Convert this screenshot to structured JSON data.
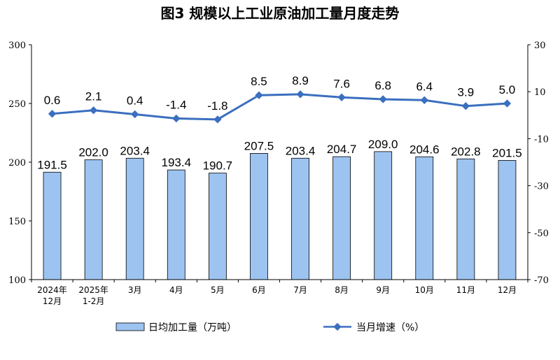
{
  "chart_data": {
    "type": "bar+line",
    "title": "图3  规模以上工业原油加工量月度走势",
    "categories": [
      [
        "2024年",
        "12月"
      ],
      [
        "2025年",
        "1-2月"
      ],
      [
        "3月"
      ],
      [
        "4月"
      ],
      [
        "5月"
      ],
      [
        "6月"
      ],
      [
        "7月"
      ],
      [
        "8月"
      ],
      [
        "9月"
      ],
      [
        "10月"
      ],
      [
        "11月"
      ],
      [
        "12月"
      ]
    ],
    "series": [
      {
        "name": "日均加工量（万吨）",
        "type": "bar",
        "axis": "left",
        "color": "#9dc3f0",
        "values": [
          191.5,
          202.0,
          203.4,
          193.4,
          190.7,
          207.5,
          203.4,
          204.7,
          209.0,
          204.6,
          202.8,
          201.5
        ],
        "labels": [
          "191.5",
          "202.0",
          "203.4",
          "193.4",
          "190.7",
          "207.5",
          "203.4",
          "204.7",
          "209.0",
          "204.6",
          "202.8",
          "201.5"
        ]
      },
      {
        "name": "当月增速（%）",
        "type": "line",
        "axis": "right",
        "color": "#3b6fbf",
        "values": [
          0.6,
          2.1,
          0.4,
          -1.4,
          -1.8,
          8.5,
          8.9,
          7.6,
          6.8,
          6.4,
          3.9,
          5.0
        ],
        "labels": [
          "0.6",
          "2.1",
          "0.4",
          "-1.4",
          "-1.8",
          "8.5",
          "8.9",
          "7.6",
          "6.8",
          "6.4",
          "3.9",
          "5.0"
        ]
      }
    ],
    "left_axis": {
      "min": 100,
      "max": 300,
      "ticks": [
        100,
        150,
        200,
        250,
        300
      ]
    },
    "right_axis": {
      "min": -70,
      "max": 30,
      "ticks": [
        -70,
        -50,
        -30,
        -10,
        10,
        30
      ]
    },
    "legend": {
      "placement": "bottom"
    },
    "grid": false
  }
}
